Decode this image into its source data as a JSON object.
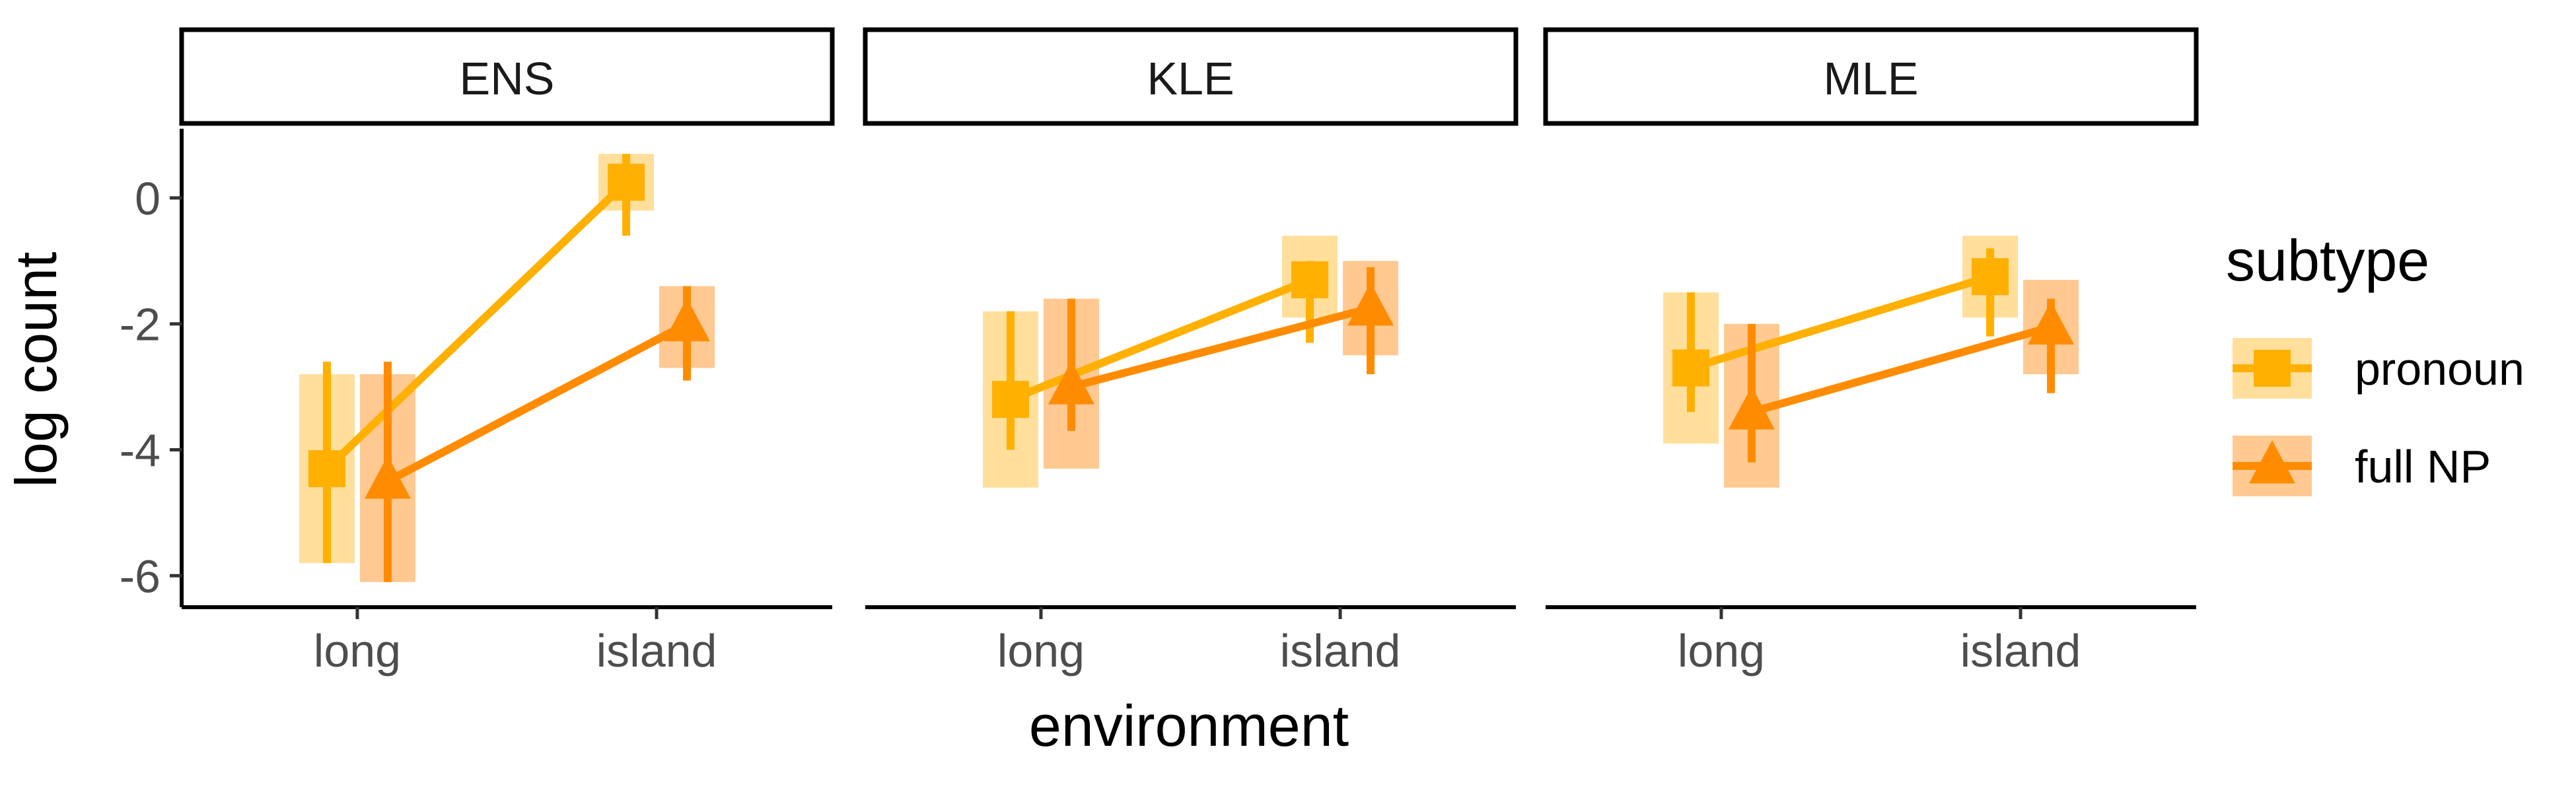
{
  "chart_data": {
    "type": "line",
    "xlabel": "environment",
    "ylabel": "log count",
    "categories": [
      "long",
      "island"
    ],
    "ylim": [
      -6.5,
      1.1
    ],
    "yticks": [
      0,
      -2,
      -4,
      -6
    ],
    "ytick_labels": [
      "0",
      "-2",
      "-4",
      "-6"
    ],
    "legend": {
      "title": "subtype",
      "placement": "right",
      "entries": [
        "pronoun",
        "full NP"
      ]
    },
    "colors": {
      "pronoun": "#FFB000",
      "full NP": "#FF8C00",
      "pronoun_band": "#FFD98A",
      "fullnp_band": "#FFC07E"
    },
    "panels": [
      {
        "name": "ENS",
        "series": [
          {
            "name": "pronoun",
            "shape": "square",
            "values": [
              -4.3,
              0.25
            ],
            "error": [
              [
                -5.8,
                -2.6
              ],
              [
                -0.6,
                0.7
              ]
            ],
            "band": [
              [
                -5.8,
                -2.8
              ],
              [
                -0.2,
                0.7
              ]
            ]
          },
          {
            "name": "full NP",
            "shape": "triangle",
            "values": [
              -4.5,
              -2.0
            ],
            "error": [
              [
                -6.1,
                -2.6
              ],
              [
                -2.9,
                -1.4
              ]
            ],
            "band": [
              [
                -6.1,
                -2.8
              ],
              [
                -2.7,
                -1.4
              ]
            ]
          }
        ]
      },
      {
        "name": "KLE",
        "series": [
          {
            "name": "pronoun",
            "shape": "square",
            "values": [
              -3.2,
              -1.3
            ],
            "error": [
              [
                -4.0,
                -1.8
              ],
              [
                -2.3,
                -1.0
              ]
            ],
            "band": [
              [
                -4.6,
                -1.8
              ],
              [
                -1.9,
                -0.6
              ]
            ]
          },
          {
            "name": "full NP",
            "shape": "triangle",
            "values": [
              -3.0,
              -1.75
            ],
            "error": [
              [
                -3.7,
                -1.6
              ],
              [
                -2.8,
                -1.1
              ]
            ],
            "band": [
              [
                -4.3,
                -1.6
              ],
              [
                -2.5,
                -1.0
              ]
            ]
          }
        ]
      },
      {
        "name": "MLE",
        "series": [
          {
            "name": "pronoun",
            "shape": "square",
            "values": [
              -2.7,
              -1.25
            ],
            "error": [
              [
                -3.4,
                -1.5
              ],
              [
                -2.2,
                -0.8
              ]
            ],
            "band": [
              [
                -3.9,
                -1.5
              ],
              [
                -1.9,
                -0.6
              ]
            ]
          },
          {
            "name": "full NP",
            "shape": "triangle",
            "values": [
              -3.4,
              -2.05
            ],
            "error": [
              [
                -4.2,
                -2.0
              ],
              [
                -3.1,
                -1.6
              ]
            ],
            "band": [
              [
                -4.6,
                -2.0
              ],
              [
                -2.8,
                -1.3
              ]
            ]
          }
        ]
      }
    ]
  }
}
